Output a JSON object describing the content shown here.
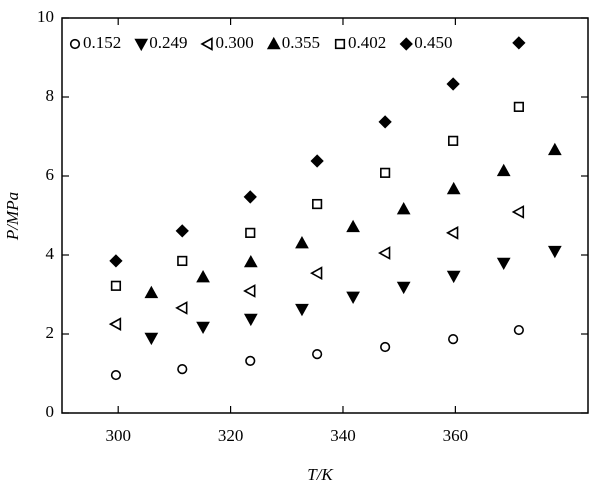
{
  "chart_data": {
    "type": "scatter",
    "x_label": "T/K",
    "y_label": "P/MPa",
    "xlim": [
      290,
      383.6
    ],
    "ylim": [
      0,
      10
    ],
    "xticks": [
      300,
      320,
      340,
      360
    ],
    "yticks": [
      0,
      2,
      4,
      6,
      8,
      10
    ],
    "legend": "top-left",
    "series": [
      {
        "name": "0.152",
        "color": "#000000",
        "marker": "circle",
        "filled": false,
        "x": [
          299.6,
          311.4,
          323.5,
          335.4,
          347.5,
          359.6,
          371.3
        ],
        "values": [
          0.96,
          1.11,
          1.32,
          1.49,
          1.67,
          1.87,
          2.1
        ]
      },
      {
        "name": "0.249",
        "color": "#000000",
        "marker": "triangle-down",
        "filled": true,
        "x": [
          305.9,
          315.1,
          323.6,
          332.7,
          341.8,
          350.8,
          359.7,
          368.6,
          377.7
        ],
        "values": [
          1.9,
          2.18,
          2.38,
          2.63,
          2.94,
          3.19,
          3.47,
          3.8,
          4.1
        ]
      },
      {
        "name": "0.300",
        "color": "#000000",
        "marker": "triangle-left",
        "filled": false,
        "x": [
          299.6,
          311.4,
          323.5,
          335.4,
          347.5,
          359.6,
          371.3
        ],
        "values": [
          2.25,
          2.66,
          3.09,
          3.54,
          4.05,
          4.56,
          5.09
        ]
      },
      {
        "name": "0.355",
        "color": "#000000",
        "marker": "triangle-up",
        "filled": true,
        "x": [
          305.9,
          315.1,
          323.6,
          332.7,
          341.8,
          350.8,
          359.7,
          368.6,
          377.7
        ],
        "values": [
          3.04,
          3.44,
          3.82,
          4.3,
          4.71,
          5.16,
          5.67,
          6.13,
          6.66
        ]
      },
      {
        "name": "0.402",
        "color": "#000000",
        "marker": "square",
        "filled": false,
        "x": [
          299.6,
          311.4,
          323.5,
          335.4,
          347.5,
          359.6,
          371.3
        ],
        "values": [
          3.22,
          3.85,
          4.56,
          5.29,
          6.08,
          6.89,
          7.75
        ]
      },
      {
        "name": "0.450",
        "color": "#000000",
        "marker": "diamond",
        "filled": true,
        "x": [
          299.6,
          311.4,
          323.5,
          335.4,
          347.5,
          359.6,
          371.3
        ],
        "values": [
          3.85,
          4.61,
          5.47,
          6.38,
          7.37,
          8.33,
          9.37
        ]
      }
    ]
  }
}
